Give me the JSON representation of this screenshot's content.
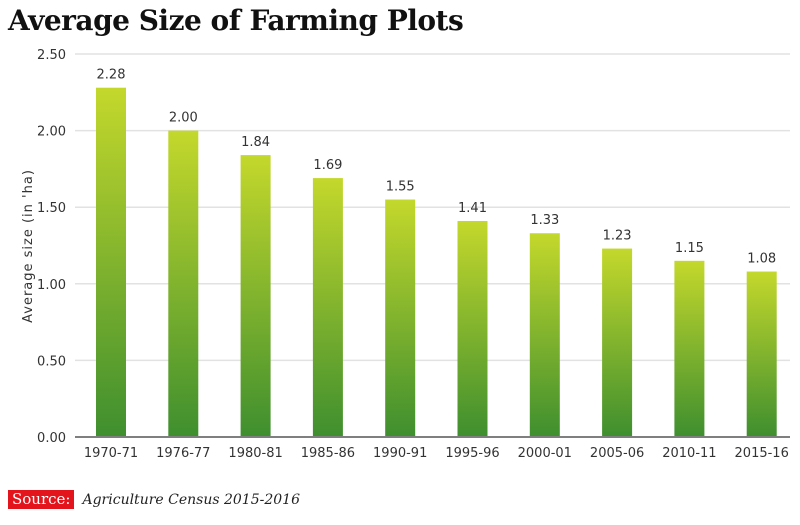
{
  "chart_data": {
    "type": "bar",
    "title": "Average Size of Farming Plots",
    "xlabel": "",
    "ylabel": "Average size (in 'ha)",
    "categories": [
      "1970-71",
      "1976-77",
      "1980-81",
      "1985-86",
      "1990-91",
      "1995-96",
      "2000-01",
      "2005-06",
      "2010-11",
      "2015-16"
    ],
    "values": [
      2.28,
      2.0,
      1.84,
      1.69,
      1.55,
      1.41,
      1.33,
      1.23,
      1.15,
      1.08
    ],
    "value_labels": [
      "2.28",
      "2.00",
      "1.84",
      "1.69",
      "1.55",
      "1.41",
      "1.33",
      "1.23",
      "1.15",
      "1.08"
    ],
    "ylim": [
      0,
      2.5
    ],
    "yticks": [
      "0.00",
      "0.50",
      "1.00",
      "1.50",
      "2.00",
      "2.50"
    ],
    "grid": true,
    "colors": {
      "bar_top": "#c4d82c",
      "bar_bottom": "#3f8f2f",
      "grid": "#e2e2e2",
      "axis": "#555555"
    }
  },
  "source": {
    "label": "Source:",
    "text": "Agriculture Census 2015-2016"
  }
}
